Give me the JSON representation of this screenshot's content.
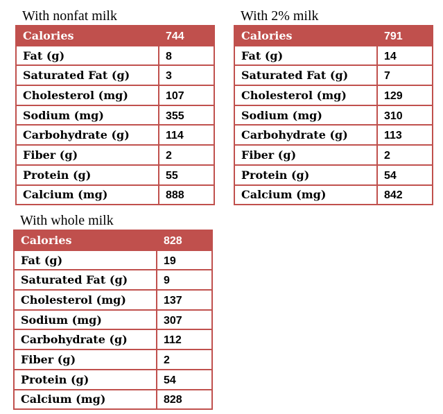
{
  "tables": [
    {
      "title": "With nonfat milk",
      "header": [
        "Calories",
        744
      ],
      "rows": [
        [
          "Fat (g)",
          8
        ],
        [
          "Saturated Fat (g)",
          3
        ],
        [
          "Cholesterol (mg)",
          107
        ],
        [
          "Sodium (mg)",
          355
        ],
        [
          "Carbohydrate (g)",
          114
        ],
        [
          "Fiber (g)",
          2
        ],
        [
          "Protein (g)",
          55
        ],
        [
          "Calcium (mg)",
          888
        ]
      ]
    },
    {
      "title": "With 2% milk",
      "header": [
        "Calories",
        791
      ],
      "rows": [
        [
          "Fat (g)",
          14
        ],
        [
          "Saturated Fat (g)",
          7
        ],
        [
          "Cholesterol (mg)",
          129
        ],
        [
          "Sodium (mg)",
          310
        ],
        [
          "Carbohydrate (g)",
          113
        ],
        [
          "Fiber (g)",
          2
        ],
        [
          "Protein (g)",
          54
        ],
        [
          "Calcium (mg)",
          842
        ]
      ]
    },
    {
      "title": "With whole milk",
      "header": [
        "Calories",
        828
      ],
      "rows": [
        [
          "Fat (g)",
          19
        ],
        [
          "Saturated Fat (g)",
          9
        ],
        [
          "Cholesterol (mg)",
          137
        ],
        [
          "Sodium (mg)",
          307
        ],
        [
          "Carbohydrate (g)",
          112
        ],
        [
          "Fiber (g)",
          2
        ],
        [
          "Protein (g)",
          54
        ],
        [
          "Calcium (mg)",
          828
        ]
      ]
    }
  ]
}
